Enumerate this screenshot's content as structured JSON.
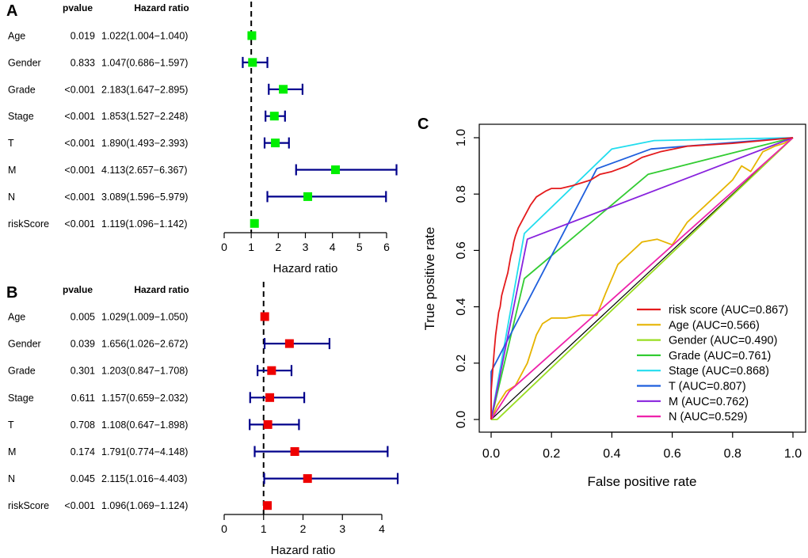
{
  "chart_data": [
    {
      "type": "forest",
      "panel": "A",
      "headers": {
        "pvalue": "pvalue",
        "hr": "Hazard ratio"
      },
      "xlabel": "Hazard ratio",
      "xticks": [
        "0",
        "1",
        "2",
        "3",
        "4",
        "5",
        "6"
      ],
      "xlim": [
        0,
        6
      ],
      "ref_line": 1,
      "marker_color": "#00ee00",
      "line_color": "#00008b",
      "rows": [
        {
          "name": "Age",
          "pvalue": "0.019",
          "hr_text": "1.022(1.004−1.040)",
          "hr": 1.022,
          "lo": 1.004,
          "hi": 1.04
        },
        {
          "name": "Gender",
          "pvalue": "0.833",
          "hr_text": "1.047(0.686−1.597)",
          "hr": 1.047,
          "lo": 0.686,
          "hi": 1.597
        },
        {
          "name": "Grade",
          "pvalue": "<0.001",
          "hr_text": "2.183(1.647−2.895)",
          "hr": 2.183,
          "lo": 1.647,
          "hi": 2.895
        },
        {
          "name": "Stage",
          "pvalue": "<0.001",
          "hr_text": "1.853(1.527−2.248)",
          "hr": 1.853,
          "lo": 1.527,
          "hi": 2.248
        },
        {
          "name": "T",
          "pvalue": "<0.001",
          "hr_text": "1.890(1.493−2.393)",
          "hr": 1.89,
          "lo": 1.493,
          "hi": 2.393
        },
        {
          "name": "M",
          "pvalue": "<0.001",
          "hr_text": "4.113(2.657−6.367)",
          "hr": 4.113,
          "lo": 2.657,
          "hi": 6.367
        },
        {
          "name": "N",
          "pvalue": "<0.001",
          "hr_text": "3.089(1.596−5.979)",
          "hr": 3.089,
          "lo": 1.596,
          "hi": 5.979
        },
        {
          "name": "riskScore",
          "pvalue": "<0.001",
          "hr_text": "1.119(1.096−1.142)",
          "hr": 1.119,
          "lo": 1.096,
          "hi": 1.142
        }
      ]
    },
    {
      "type": "forest",
      "panel": "B",
      "headers": {
        "pvalue": "pvalue",
        "hr": "Hazard ratio"
      },
      "xlabel": "Hazard ratio",
      "xticks": [
        "0",
        "1",
        "2",
        "3",
        "4"
      ],
      "xlim": [
        0,
        4
      ],
      "ref_line": 1,
      "marker_color": "#ee0000",
      "line_color": "#00008b",
      "rows": [
        {
          "name": "Age",
          "pvalue": "0.005",
          "hr_text": "1.029(1.009−1.050)",
          "hr": 1.029,
          "lo": 1.009,
          "hi": 1.05
        },
        {
          "name": "Gender",
          "pvalue": "0.039",
          "hr_text": "1.656(1.026−2.672)",
          "hr": 1.656,
          "lo": 1.026,
          "hi": 2.672
        },
        {
          "name": "Grade",
          "pvalue": "0.301",
          "hr_text": "1.203(0.847−1.708)",
          "hr": 1.203,
          "lo": 0.847,
          "hi": 1.708
        },
        {
          "name": "Stage",
          "pvalue": "0.611",
          "hr_text": "1.157(0.659−2.032)",
          "hr": 1.157,
          "lo": 0.659,
          "hi": 2.032
        },
        {
          "name": "T",
          "pvalue": "0.708",
          "hr_text": "1.108(0.647−1.898)",
          "hr": 1.108,
          "lo": 0.647,
          "hi": 1.898
        },
        {
          "name": "M",
          "pvalue": "0.174",
          "hr_text": "1.791(0.774−4.148)",
          "hr": 1.791,
          "lo": 0.774,
          "hi": 4.148
        },
        {
          "name": "N",
          "pvalue": "0.045",
          "hr_text": "2.115(1.016−4.403)",
          "hr": 2.115,
          "lo": 1.016,
          "hi": 4.403
        },
        {
          "name": "riskScore",
          "pvalue": "<0.001",
          "hr_text": "1.096(1.069−1.124)",
          "hr": 1.096,
          "lo": 1.069,
          "hi": 1.124
        }
      ]
    },
    {
      "type": "line",
      "panel": "C",
      "xlabel": "False positive rate",
      "ylabel": "True positive rate",
      "xlim": [
        0,
        1
      ],
      "ylim": [
        0,
        1
      ],
      "xticks": [
        "0.0",
        "0.2",
        "0.4",
        "0.6",
        "0.8",
        "1.0"
      ],
      "yticks": [
        "0.0",
        "0.2",
        "0.4",
        "0.6",
        "0.8",
        "1.0"
      ],
      "diagonal": true,
      "legend_position": "bottom-right",
      "series": [
        {
          "name": "risk score (AUC=0.867)",
          "color": "#e41a1c",
          "x": [
            0,
            0,
            0.005,
            0.01,
            0.015,
            0.02,
            0.025,
            0.03,
            0.035,
            0.04,
            0.045,
            0.05,
            0.055,
            0.06,
            0.065,
            0.07,
            0.075,
            0.08,
            0.09,
            0.1,
            0.11,
            0.12,
            0.13,
            0.15,
            0.18,
            0.2,
            0.23,
            0.27,
            0.3,
            0.33,
            0.36,
            0.4,
            0.45,
            0.5,
            0.56,
            0.65,
            0.8,
            0.9,
            1.0
          ],
          "y": [
            0,
            0.1,
            0.17,
            0.24,
            0.3,
            0.34,
            0.38,
            0.4,
            0.44,
            0.46,
            0.48,
            0.5,
            0.52,
            0.55,
            0.58,
            0.6,
            0.63,
            0.65,
            0.68,
            0.7,
            0.72,
            0.74,
            0.76,
            0.79,
            0.81,
            0.82,
            0.82,
            0.83,
            0.84,
            0.85,
            0.87,
            0.88,
            0.9,
            0.93,
            0.95,
            0.97,
            0.98,
            0.99,
            1.0
          ]
        },
        {
          "name": "Age (AUC=0.566)",
          "color": "#e6b400",
          "x": [
            0,
            0.02,
            0.05,
            0.08,
            0.12,
            0.15,
            0.17,
            0.2,
            0.25,
            0.3,
            0.35,
            0.38,
            0.42,
            0.47,
            0.5,
            0.55,
            0.6,
            0.65,
            0.7,
            0.75,
            0.8,
            0.83,
            0.86,
            0.9,
            0.94,
            0.97,
            1.0
          ],
          "y": [
            0,
            0.05,
            0.1,
            0.12,
            0.2,
            0.3,
            0.34,
            0.36,
            0.36,
            0.37,
            0.37,
            0.45,
            0.55,
            0.6,
            0.63,
            0.64,
            0.62,
            0.7,
            0.75,
            0.8,
            0.85,
            0.9,
            0.88,
            0.95,
            0.97,
            0.98,
            1.0
          ]
        },
        {
          "name": "Gender (AUC=0.490)",
          "color": "#99dd22",
          "x": [
            0,
            0.02,
            1.0
          ],
          "y": [
            0,
            0.0,
            1.0
          ]
        },
        {
          "name": "Grade (AUC=0.761)",
          "color": "#33cc33",
          "x": [
            0,
            0.11,
            0.52,
            1.0
          ],
          "y": [
            0,
            0.5,
            0.87,
            1.0
          ]
        },
        {
          "name": "Stage (AUC=0.868)",
          "color": "#22ddee",
          "x": [
            0,
            0.11,
            0.4,
            0.54,
            1.0
          ],
          "y": [
            0,
            0.66,
            0.96,
            0.99,
            1.0
          ]
        },
        {
          "name": "T (AUC=0.807)",
          "color": "#1f5fdd",
          "x": [
            0,
            0,
            0.35,
            0.53,
            1.0
          ],
          "y": [
            0,
            0.17,
            0.89,
            0.96,
            1.0
          ]
        },
        {
          "name": "M (AUC=0.762)",
          "color": "#8822dd",
          "x": [
            0,
            0.12,
            1.0
          ],
          "y": [
            0,
            0.64,
            1.0
          ]
        },
        {
          "name": "N (AUC=0.529)",
          "color": "#ee22aa",
          "x": [
            0,
            0.06,
            1.0
          ],
          "y": [
            0,
            0.1,
            1.0
          ]
        }
      ]
    }
  ]
}
